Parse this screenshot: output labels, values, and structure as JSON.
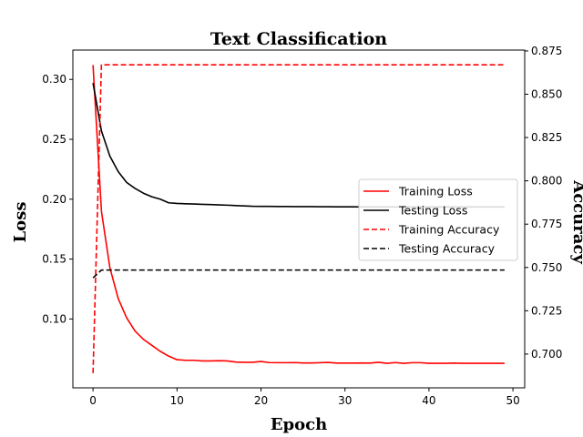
{
  "chart_data": {
    "type": "line",
    "title": "Text Classification",
    "xlabel": "Epoch",
    "ylabel_left": "Loss",
    "ylabel_right": "Accuracy",
    "xlim": [
      -2.4,
      51.4
    ],
    "ylim_left": [
      0.0425,
      0.3245
    ],
    "ylim_right": [
      0.6805,
      0.8755
    ],
    "x_ticks": [
      0,
      10,
      20,
      30,
      40,
      50
    ],
    "y_ticks_left": [
      0.1,
      0.15,
      0.2,
      0.25,
      0.3
    ],
    "y_ticks_left_labels": [
      "0.10",
      "0.15",
      "0.20",
      "0.25",
      "0.30"
    ],
    "y_ticks_right": [
      0.7,
      0.725,
      0.75,
      0.775,
      0.8,
      0.825,
      0.85,
      0.875
    ],
    "y_ticks_right_labels": [
      "0.700",
      "0.725",
      "0.750",
      "0.775",
      "0.800",
      "0.825",
      "0.850",
      "0.875"
    ],
    "grid": false,
    "legend_position": "center-right",
    "x": [
      0,
      1,
      2,
      3,
      4,
      5,
      6,
      7,
      8,
      9,
      10,
      11,
      12,
      13,
      14,
      15,
      16,
      17,
      18,
      19,
      20,
      21,
      22,
      23,
      24,
      25,
      26,
      27,
      28,
      29,
      30,
      31,
      32,
      33,
      34,
      35,
      36,
      37,
      38,
      39,
      40,
      41,
      42,
      43,
      44,
      45,
      46,
      47,
      48,
      49
    ],
    "series": [
      {
        "name": "Training Loss",
        "axis": "left",
        "color": "#ff0000",
        "dash": "solid",
        "values": [
          0.312,
          0.19,
          0.143,
          0.117,
          0.101,
          0.09,
          0.083,
          0.078,
          0.073,
          0.069,
          0.066,
          0.0655,
          0.0655,
          0.065,
          0.065,
          0.0652,
          0.065,
          0.064,
          0.0638,
          0.0638,
          0.0645,
          0.0636,
          0.0635,
          0.0635,
          0.0636,
          0.0633,
          0.0633,
          0.0635,
          0.0637,
          0.0632,
          0.0632,
          0.0632,
          0.0633,
          0.0632,
          0.0638,
          0.063,
          0.0636,
          0.063,
          0.0635,
          0.0635,
          0.063,
          0.063,
          0.063,
          0.0632,
          0.063,
          0.063,
          0.063,
          0.063,
          0.063,
          0.063
        ]
      },
      {
        "name": "Testing Loss",
        "axis": "left",
        "color": "#000000",
        "dash": "solid",
        "values": [
          0.297,
          0.257,
          0.236,
          0.223,
          0.214,
          0.209,
          0.205,
          0.202,
          0.2,
          0.197,
          0.1965,
          0.1962,
          0.196,
          0.1957,
          0.1955,
          0.1952,
          0.195,
          0.1947,
          0.1944,
          0.1941,
          0.194,
          0.194,
          0.1939,
          0.1939,
          0.1938,
          0.1938,
          0.1938,
          0.1937,
          0.1937,
          0.1936,
          0.1936,
          0.1936,
          0.1935,
          0.1935,
          0.1935,
          0.1935,
          0.1935,
          0.1935,
          0.1935,
          0.1935,
          0.1935,
          0.1935,
          0.1935,
          0.1935,
          0.1935,
          0.1935,
          0.1935,
          0.1935,
          0.1935,
          0.1935
        ]
      },
      {
        "name": "Training Accuracy",
        "axis": "right",
        "color": "#ff0000",
        "dash": "dashed",
        "values": [
          0.689,
          0.867,
          0.867,
          0.867,
          0.867,
          0.867,
          0.867,
          0.867,
          0.867,
          0.867,
          0.867,
          0.867,
          0.867,
          0.867,
          0.867,
          0.867,
          0.867,
          0.867,
          0.867,
          0.867,
          0.867,
          0.867,
          0.867,
          0.867,
          0.867,
          0.867,
          0.867,
          0.867,
          0.867,
          0.867,
          0.867,
          0.867,
          0.867,
          0.867,
          0.867,
          0.867,
          0.867,
          0.867,
          0.867,
          0.867,
          0.867,
          0.867,
          0.867,
          0.867,
          0.867,
          0.867,
          0.867,
          0.867,
          0.867,
          0.867
        ]
      },
      {
        "name": "Testing Accuracy",
        "axis": "right",
        "color": "#000000",
        "dash": "dashed",
        "values": [
          0.744,
          0.7485,
          0.7485,
          0.7485,
          0.7485,
          0.7485,
          0.7485,
          0.7485,
          0.7485,
          0.7485,
          0.7485,
          0.7485,
          0.7485,
          0.7485,
          0.7485,
          0.7485,
          0.7485,
          0.7485,
          0.7485,
          0.7485,
          0.7485,
          0.7485,
          0.7485,
          0.7485,
          0.7485,
          0.7485,
          0.7485,
          0.7485,
          0.7485,
          0.7485,
          0.7485,
          0.7485,
          0.7485,
          0.7485,
          0.7485,
          0.7485,
          0.7485,
          0.7485,
          0.7485,
          0.7485,
          0.7485,
          0.7485,
          0.7485,
          0.7485,
          0.7485,
          0.7485,
          0.7485,
          0.7485,
          0.7485,
          0.7485
        ]
      }
    ]
  }
}
